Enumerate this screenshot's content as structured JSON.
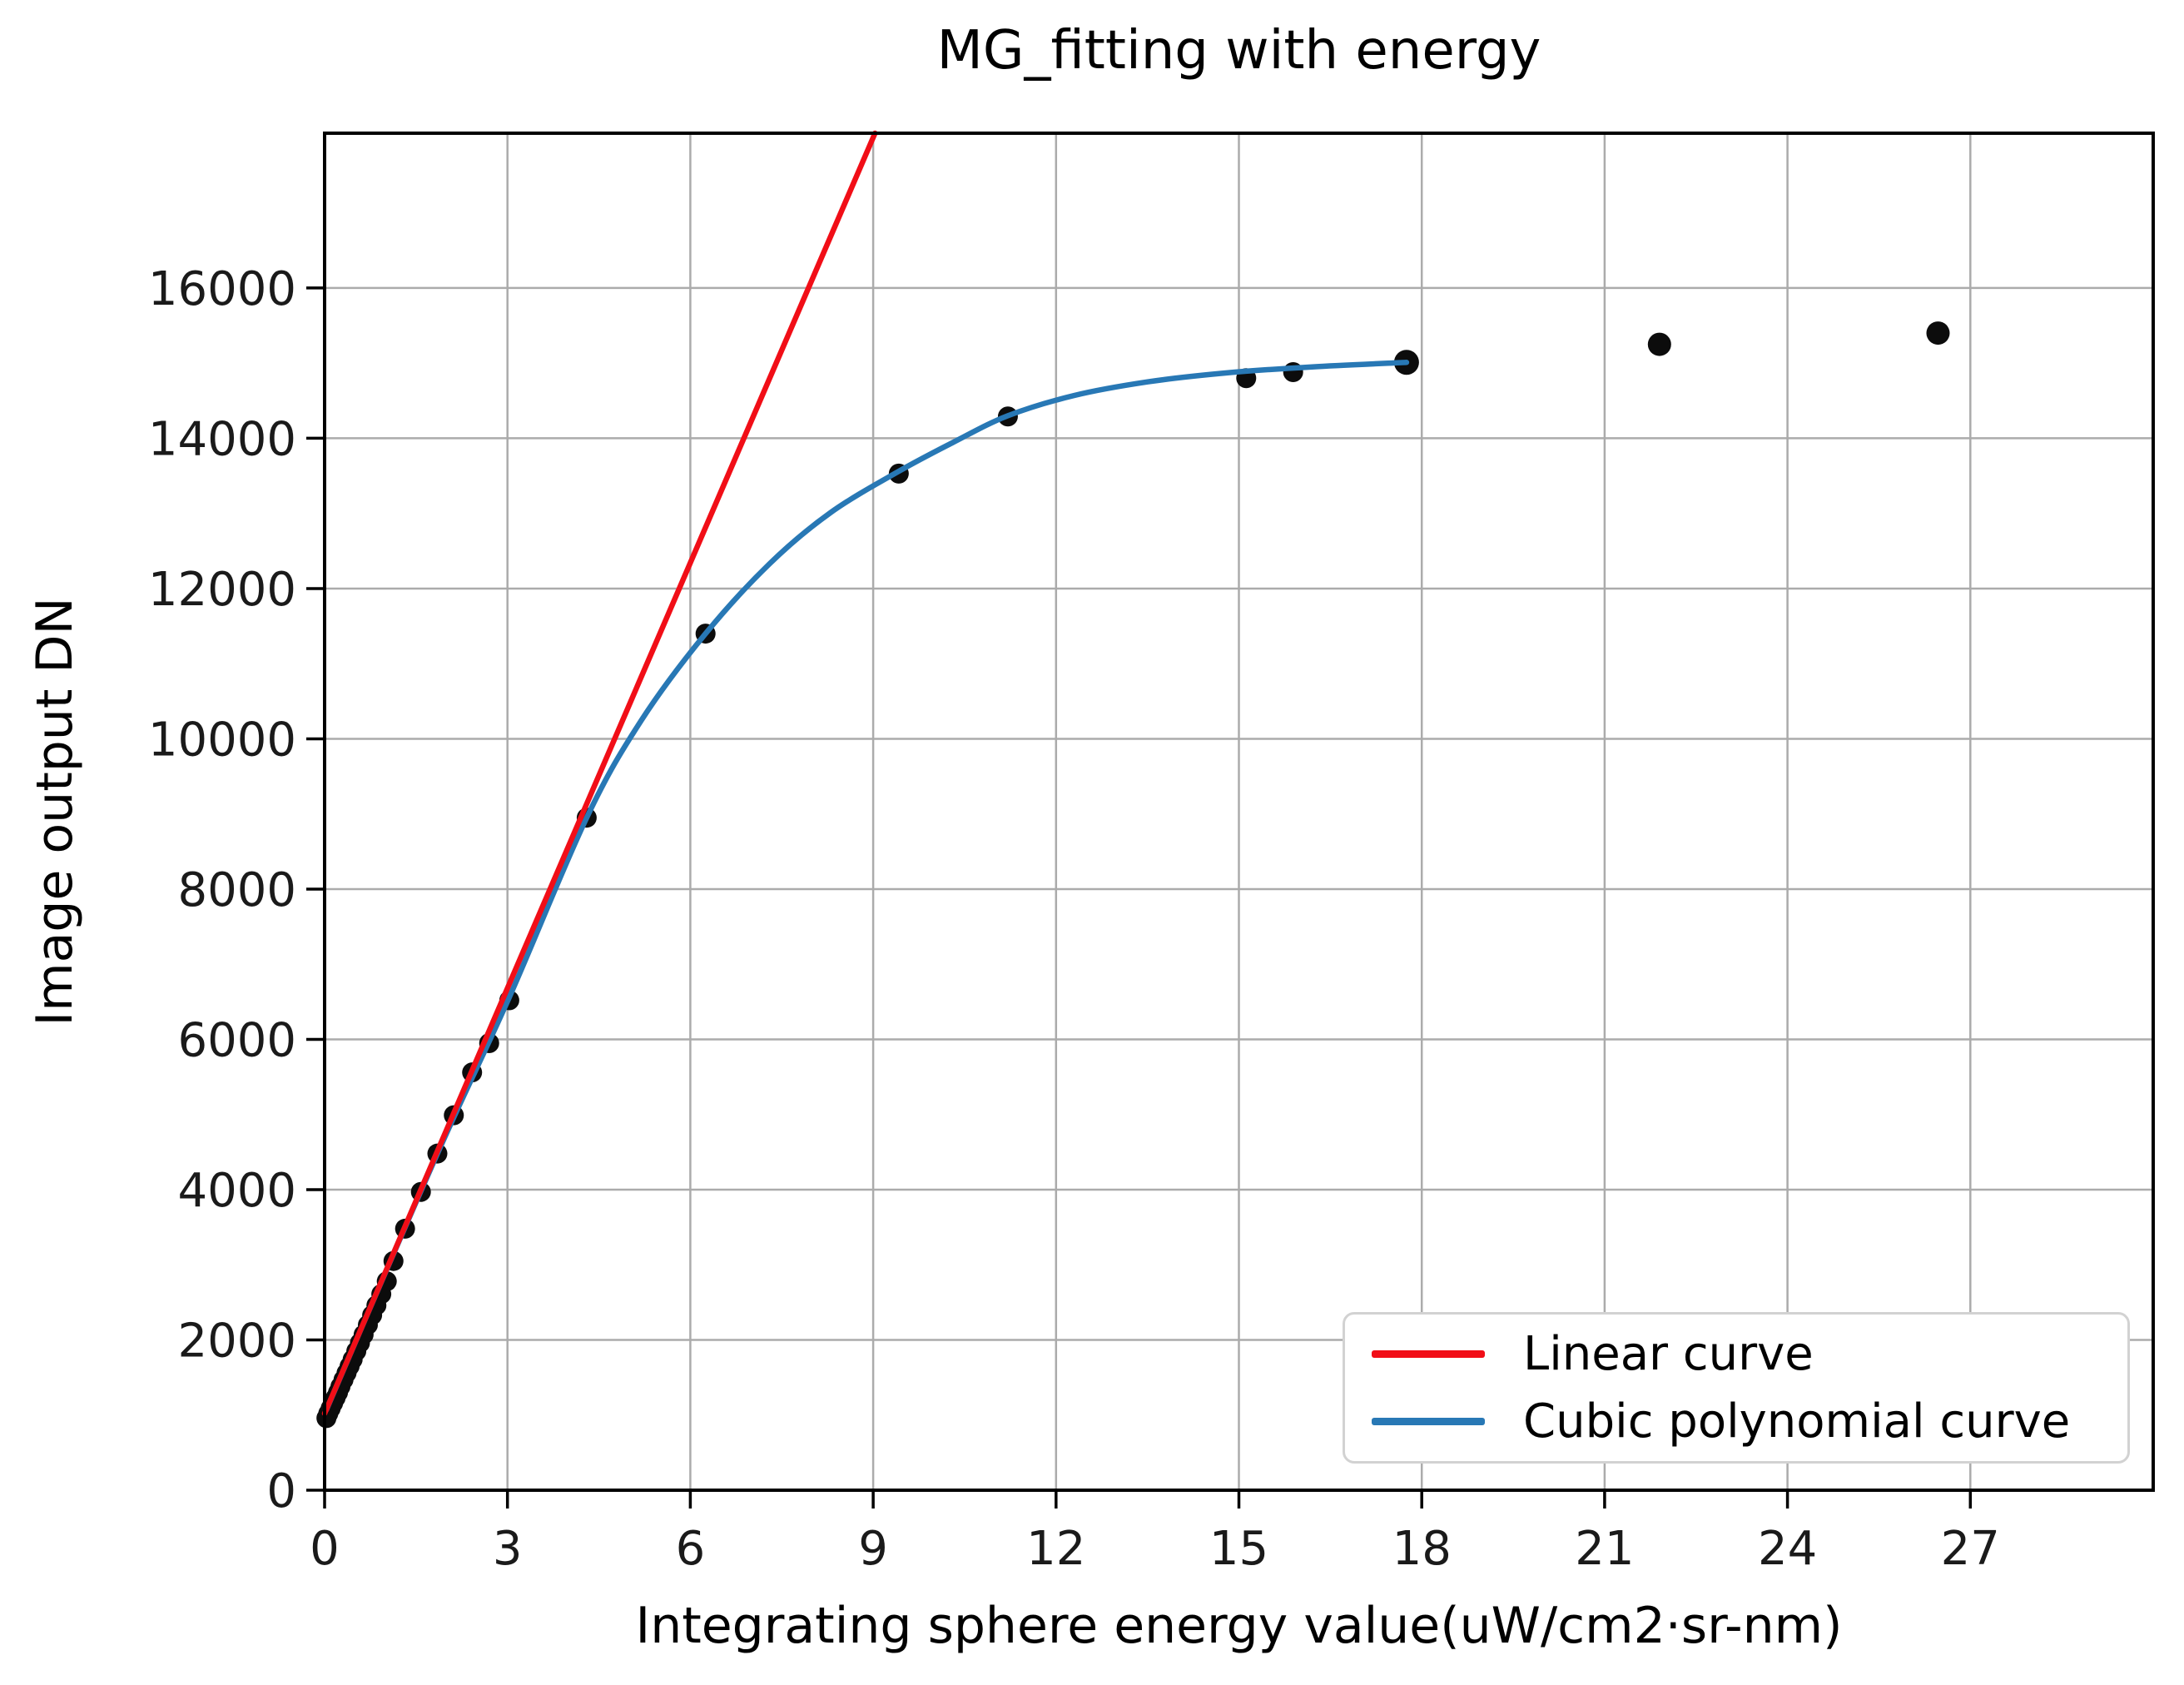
{
  "figure": {
    "background": "#ffffff",
    "text_color": "#000000"
  },
  "chart_data": {
    "type": "scatter",
    "title": "MG_fitting with energy",
    "xlabel": "Integrating sphere energy value(uW/cm2·sr-nm)",
    "ylabel": "Image output DN",
    "xlim": [
      0,
      30
    ],
    "ylim": [
      0,
      18060
    ],
    "xticks": [
      0,
      3,
      6,
      9,
      12,
      15,
      18,
      21,
      24,
      27
    ],
    "yticks": [
      0,
      2000,
      4000,
      6000,
      8000,
      10000,
      12000,
      14000,
      16000
    ],
    "grid": true,
    "grid_color": "#ababab",
    "axis_color": "#000000",
    "tick_label_color": "#1a1a1a",
    "scatter": {
      "name": "measured-data-points",
      "color": "#0c0c0c",
      "marker_radius": 12,
      "points": [
        [
          0.03,
          960
        ],
        [
          0.06,
          1020
        ],
        [
          0.1,
          1090
        ],
        [
          0.14,
          1160
        ],
        [
          0.18,
          1230
        ],
        [
          0.22,
          1300
        ],
        [
          0.26,
          1380
        ],
        [
          0.31,
          1470
        ],
        [
          0.36,
          1560
        ],
        [
          0.41,
          1650
        ],
        [
          0.46,
          1740
        ],
        [
          0.52,
          1850
        ],
        [
          0.58,
          1960
        ],
        [
          0.64,
          2070
        ],
        [
          0.71,
          2200
        ],
        [
          0.78,
          2330
        ],
        [
          0.85,
          2460
        ],
        [
          0.93,
          2610
        ],
        [
          1.02,
          2780
        ],
        [
          1.13,
          3050
        ],
        [
          1.32,
          3480
        ],
        [
          1.58,
          3970
        ],
        [
          1.85,
          4480
        ],
        [
          2.12,
          4990
        ],
        [
          2.42,
          5560
        ],
        [
          2.7,
          5950
        ],
        [
          3.03,
          6520
        ],
        [
          4.3,
          8950
        ],
        [
          6.25,
          11400
        ],
        [
          9.42,
          13530
        ],
        [
          11.21,
          14290
        ],
        [
          15.12,
          14800
        ],
        [
          15.89,
          14880
        ],
        [
          17.75,
          15010,
          15
        ],
        [
          21.9,
          15250,
          14
        ],
        [
          26.47,
          15400,
          14
        ]
      ]
    },
    "series": [
      {
        "name": "Linear curve",
        "type": "line",
        "color": "#f10e17",
        "linewidth": 6.5,
        "points": [
          [
            0,
            1020
          ],
          [
            9.03,
            18060
          ]
        ]
      },
      {
        "name": "Cubic polynomial curve",
        "type": "smooth",
        "color": "#2878b5",
        "linewidth": 6.5,
        "points": [
          [
            0.03,
            1070
          ],
          [
            1.0,
            2900
          ],
          [
            2.0,
            4750
          ],
          [
            3.03,
            6560
          ],
          [
            4.3,
            8950
          ],
          [
            5.2,
            10250
          ],
          [
            6.25,
            11400
          ],
          [
            7.3,
            12330
          ],
          [
            8.3,
            13010
          ],
          [
            9.42,
            13560
          ],
          [
            10.3,
            13940
          ],
          [
            11.21,
            14300
          ],
          [
            12.3,
            14570
          ],
          [
            13.5,
            14750
          ],
          [
            14.8,
            14870
          ],
          [
            16.2,
            14950
          ],
          [
            17.75,
            15010
          ]
        ]
      }
    ],
    "legend": {
      "position": "lower right",
      "entries": [
        {
          "label": "Linear curve",
          "color": "#f10e17"
        },
        {
          "label": "Cubic polynomial curve",
          "color": "#2878b5"
        }
      ]
    }
  }
}
